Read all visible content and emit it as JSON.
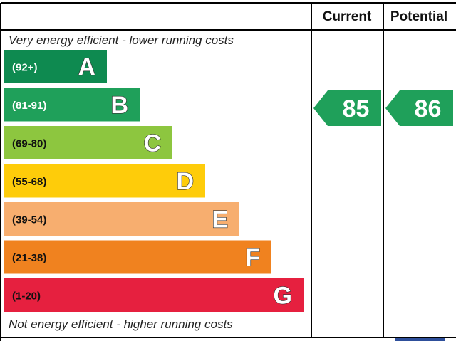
{
  "header": {
    "current_label": "Current",
    "potential_label": "Potential"
  },
  "top_caption": "Very energy efficient - lower running costs",
  "bottom_caption": "Not energy efficient - higher running costs",
  "chart_data": {
    "type": "bar",
    "categories": [
      "A",
      "B",
      "C",
      "D",
      "E",
      "F",
      "G"
    ],
    "ranges": [
      "(92+)",
      "(81-91)",
      "(69-80)",
      "(55-68)",
      "(39-54)",
      "(21-38)",
      "(1-20)"
    ],
    "band_min": [
      92,
      81,
      69,
      55,
      39,
      21,
      1
    ],
    "colors": [
      "#0e8a50",
      "#1fa05a",
      "#8dc63f",
      "#fecc0a",
      "#f7ae6f",
      "#f0821f",
      "#e6203f"
    ],
    "range_text_colors": [
      "#ffffff",
      "#ffffff",
      "#111111",
      "#111111",
      "#111111",
      "#111111",
      "#111111"
    ],
    "current": {
      "value": 85,
      "band": "B",
      "color": "#1fa05a"
    },
    "potential": {
      "value": 86,
      "band": "B",
      "color": "#1fa05a"
    }
  }
}
